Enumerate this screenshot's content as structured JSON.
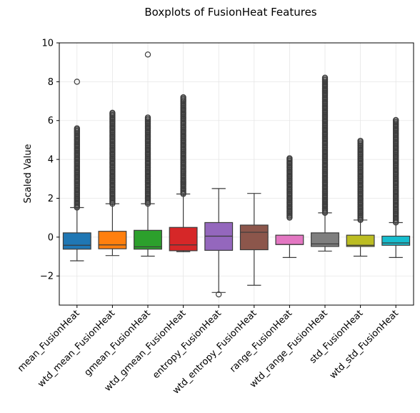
{
  "chart_data": {
    "type": "box",
    "title": "Boxplots of FusionHeat Features",
    "xlabel": "",
    "ylabel": "Scaled Value",
    "ylim": [
      -3.5,
      10
    ],
    "yticks": [
      -2,
      0,
      2,
      4,
      6,
      8,
      10
    ],
    "grid": true,
    "legend": "none",
    "categories": [
      "mean_FusionHeat",
      "wtd_mean_FusionHeat",
      "gmean_FusionHeat",
      "wtd_gmean_FusionHeat",
      "entropy_FusionHeat",
      "wtd_entropy_FusionHeat",
      "range_FusionHeat",
      "wtd_range_FusionHeat",
      "std_FusionHeat",
      "wtd_std_FusionHeat"
    ],
    "series": [
      {
        "category": "mean_FusionHeat",
        "color": "#1f77b4",
        "whisker_low": -1.22,
        "q1": -0.62,
        "median": -0.42,
        "q3": 0.22,
        "whisker_high": 1.52,
        "outlier_range": [
          1.52,
          5.6
        ],
        "outliers": [
          8.0
        ]
      },
      {
        "category": "wtd_mean_FusionHeat",
        "color": "#ff7f0e",
        "whisker_low": -0.95,
        "q1": -0.6,
        "median": -0.4,
        "q3": 0.3,
        "whisker_high": 1.72,
        "outlier_range": [
          1.72,
          6.4
        ],
        "outliers": []
      },
      {
        "category": "gmean_FusionHeat",
        "color": "#2ca02c",
        "whisker_low": -0.98,
        "q1": -0.62,
        "median": -0.5,
        "q3": 0.35,
        "whisker_high": 1.72,
        "outlier_range": [
          1.72,
          6.2
        ],
        "outliers": [
          9.4
        ]
      },
      {
        "category": "wtd_gmean_FusionHeat",
        "color": "#d62728",
        "whisker_low": -0.75,
        "q1": -0.7,
        "median": -0.4,
        "q3": 0.5,
        "whisker_high": 2.22,
        "outlier_range": [
          2.22,
          7.2
        ],
        "outliers": []
      },
      {
        "category": "entropy_FusionHeat",
        "color": "#9467bd",
        "whisker_low": -2.85,
        "q1": -0.68,
        "median": 0.05,
        "q3": 0.75,
        "whisker_high": 2.5,
        "outlier_range": [],
        "outliers": [
          -2.95
        ]
      },
      {
        "category": "wtd_entropy_FusionHeat",
        "color": "#8c564b",
        "whisker_low": -2.48,
        "q1": -0.65,
        "median": 0.25,
        "q3": 0.62,
        "whisker_high": 2.25,
        "outlier_range": [],
        "outliers": []
      },
      {
        "category": "range_FusionHeat",
        "color": "#e377c2",
        "whisker_low": -1.05,
        "q1": -0.38,
        "median": -0.38,
        "q3": 0.1,
        "whisker_high": 0.1,
        "outlier_range": [
          1.0,
          4.1
        ],
        "outliers": []
      },
      {
        "category": "wtd_range_FusionHeat",
        "color": "#7f7f7f",
        "whisker_low": -0.72,
        "q1": -0.48,
        "median": -0.35,
        "q3": 0.22,
        "whisker_high": 1.25,
        "outlier_range": [
          1.25,
          8.25
        ],
        "outliers": []
      },
      {
        "category": "std_FusionHeat",
        "color": "#bcbd22",
        "whisker_low": -0.98,
        "q1": -0.48,
        "median": -0.42,
        "q3": 0.1,
        "whisker_high": 0.88,
        "outlier_range": [
          0.88,
          5.0
        ],
        "outliers": []
      },
      {
        "category": "wtd_std_FusionHeat",
        "color": "#17becf",
        "whisker_low": -1.05,
        "q1": -0.42,
        "median": -0.3,
        "q3": 0.05,
        "whisker_high": 0.75,
        "outlier_range": [
          0.75,
          6.05
        ],
        "outliers": []
      }
    ]
  }
}
